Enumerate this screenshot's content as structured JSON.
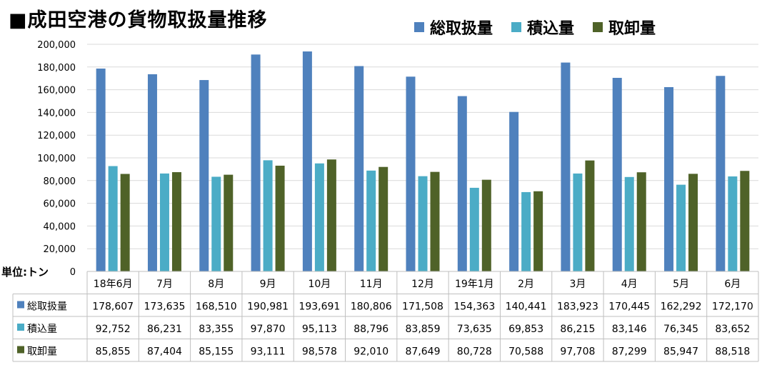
{
  "title": "■成田空港の貨物取扱量推移",
  "unit_label": "単位:トン",
  "colors": {
    "total": "#4f81bd",
    "export": "#4bacc6",
    "import": "#4f6228",
    "grid": "#d9d9d9",
    "table": "#bfbfbf"
  },
  "chart_data": {
    "type": "bar",
    "title": "■成田空港の貨物取扱量推移",
    "categories": [
      "18年6月",
      "7月",
      "8月",
      "9月",
      "10月",
      "11月",
      "12月",
      "19年1月",
      "2月",
      "3月",
      "4月",
      "5月",
      "6月"
    ],
    "series": [
      {
        "name": "総取扱量",
        "color_key": "total",
        "values": [
          178607,
          173635,
          168510,
          190981,
          193691,
          180806,
          171508,
          154363,
          140441,
          183923,
          170445,
          162292,
          172170
        ]
      },
      {
        "name": "積込量",
        "color_key": "export",
        "values": [
          92752,
          86231,
          83355,
          97870,
          95113,
          88796,
          83859,
          73635,
          69853,
          86215,
          83146,
          76345,
          83652
        ]
      },
      {
        "name": "取卸量",
        "color_key": "import",
        "values": [
          85855,
          87404,
          85155,
          93111,
          98578,
          92010,
          87649,
          80728,
          70588,
          97708,
          87299,
          85947,
          88518
        ]
      }
    ],
    "ylim": [
      0,
      200000
    ],
    "yticks": [
      0,
      20000,
      40000,
      60000,
      80000,
      100000,
      120000,
      140000,
      160000,
      180000,
      200000
    ],
    "ytick_labels": [
      "0",
      "20,000",
      "40,000",
      "60,000",
      "80,000",
      "100,000",
      "120,000",
      "140,000",
      "160,000",
      "180,000",
      "200,000"
    ],
    "grid": true,
    "legend": "top-right",
    "data_table": true
  }
}
